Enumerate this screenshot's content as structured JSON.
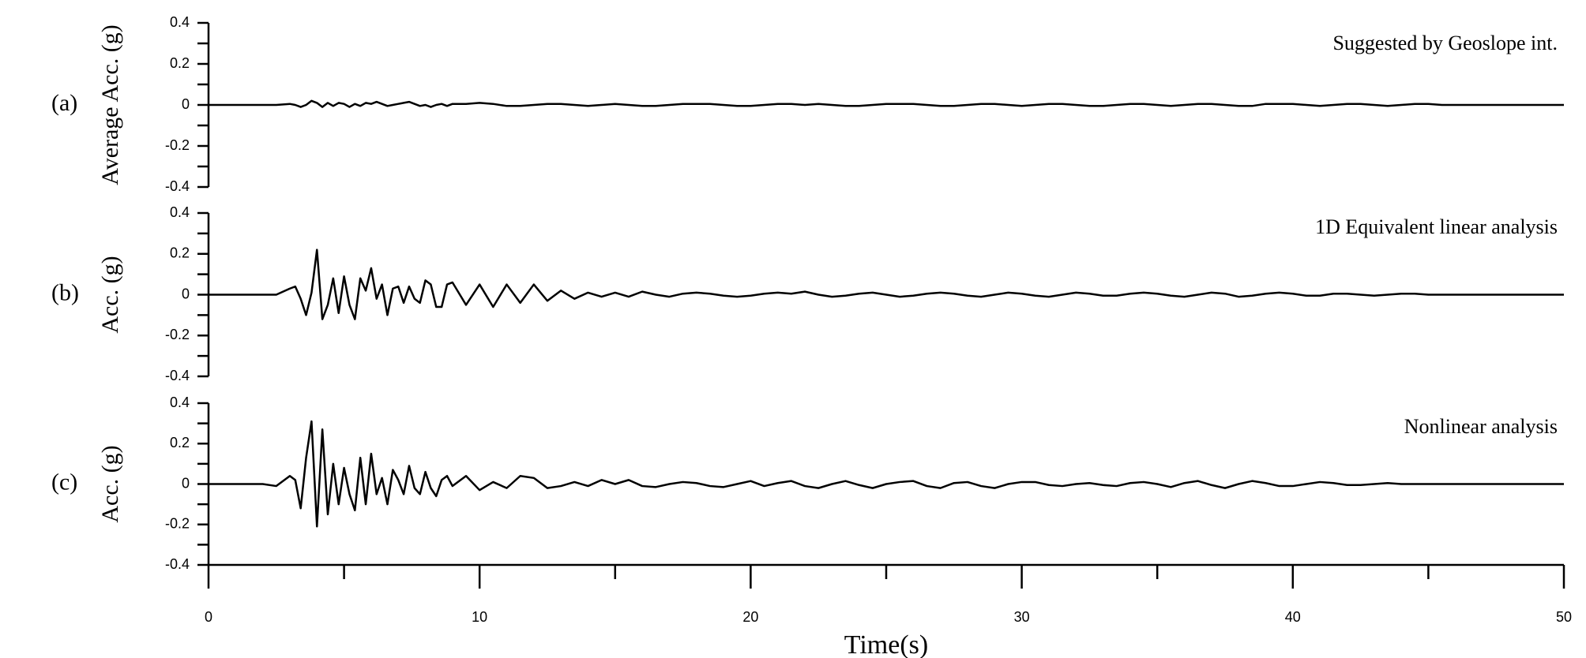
{
  "chart_data": {
    "type": "line",
    "color": "#000000",
    "xlabel": "Time(s)",
    "xlim": [
      0,
      50
    ],
    "xticks": [
      0,
      10,
      20,
      30,
      40,
      50
    ],
    "x": [
      0,
      1,
      2,
      2.5,
      3,
      3.2,
      3.4,
      3.6,
      3.8,
      4,
      4.2,
      4.4,
      4.6,
      4.8,
      5,
      5.2,
      5.4,
      5.6,
      5.8,
      6,
      6.2,
      6.4,
      6.6,
      6.8,
      7,
      7.2,
      7.4,
      7.6,
      7.8,
      8,
      8.2,
      8.4,
      8.6,
      8.8,
      9,
      9.5,
      10,
      10.5,
      11,
      11.5,
      12,
      12.5,
      13,
      13.5,
      14,
      14.5,
      15,
      15.5,
      16,
      16.5,
      17,
      17.5,
      18,
      18.5,
      19,
      19.5,
      20,
      20.5,
      21,
      21.5,
      22,
      22.5,
      23,
      23.5,
      24,
      24.5,
      25,
      25.5,
      26,
      26.5,
      27,
      27.5,
      28,
      28.5,
      29,
      29.5,
      30,
      30.5,
      31,
      31.5,
      32,
      32.5,
      33,
      33.5,
      34,
      34.5,
      35,
      35.5,
      36,
      36.5,
      37,
      37.5,
      38,
      38.5,
      39,
      39.5,
      40,
      40.5,
      41,
      41.5,
      42,
      42.5,
      43,
      43.5,
      44,
      44.5,
      45,
      45.5,
      46,
      46.5,
      47,
      47.5,
      48,
      48.5,
      49,
      49.5,
      50
    ],
    "panels": [
      {
        "label": "(a)",
        "ylabel": "Average Acc. (g)",
        "annotation": "Suggested by Geoslope int.",
        "ylim": [
          -0.4,
          0.4
        ],
        "yticks": [
          -0.4,
          -0.2,
          0,
          0.2,
          0.4
        ],
        "values": [
          0,
          0,
          0,
          0,
          0.005,
          0,
          -0.01,
          0,
          0.02,
          0.01,
          -0.01,
          0.01,
          -0.005,
          0.01,
          0.005,
          -0.01,
          0.005,
          -0.005,
          0.01,
          0.005,
          0.015,
          0.005,
          -0.005,
          0,
          0.005,
          0.01,
          0.015,
          0.005,
          -0.005,
          0,
          -0.01,
          0,
          0.005,
          -0.005,
          0.005,
          0.005,
          0.01,
          0.005,
          -0.005,
          -0.005,
          0,
          0.005,
          0.005,
          0,
          -0.005,
          0,
          0.005,
          0,
          -0.005,
          -0.005,
          0,
          0.005,
          0.005,
          0.005,
          0,
          -0.005,
          -0.005,
          0,
          0.005,
          0.005,
          0,
          0.005,
          0,
          -0.005,
          -0.005,
          0,
          0.005,
          0.005,
          0.005,
          0,
          -0.005,
          -0.005,
          0,
          0.005,
          0.005,
          0,
          -0.005,
          0,
          0.005,
          0.005,
          0,
          -0.005,
          -0.005,
          0,
          0.005,
          0.005,
          0,
          -0.005,
          0,
          0.005,
          0.005,
          0,
          -0.005,
          -0.005,
          0.005,
          0.005,
          0.005,
          0,
          -0.005,
          0,
          0.005,
          0.005,
          0,
          -0.005,
          0,
          0.005,
          0.005,
          0,
          0,
          0,
          0,
          0,
          0,
          0,
          0,
          0,
          0
        ]
      },
      {
        "label": "(b)",
        "ylabel": "Acc. (g)",
        "annotation": "1D Equivalent linear analysis",
        "ylim": [
          -0.4,
          0.4
        ],
        "yticks": [
          -0.4,
          -0.2,
          0,
          0.2,
          0.4
        ],
        "values": [
          0,
          0,
          0,
          0,
          0.03,
          0.04,
          -0.02,
          -0.1,
          0.01,
          0.22,
          -0.12,
          -0.05,
          0.08,
          -0.09,
          0.09,
          -0.05,
          -0.12,
          0.08,
          0.02,
          0.13,
          -0.02,
          0.05,
          -0.1,
          0.03,
          0.04,
          -0.04,
          0.04,
          -0.02,
          -0.04,
          0.07,
          0.05,
          -0.06,
          -0.06,
          0.05,
          0.06,
          -0.05,
          0.05,
          -0.06,
          0.05,
          -0.04,
          0.05,
          -0.03,
          0.02,
          -0.02,
          0.01,
          -0.01,
          0.01,
          -0.01,
          0.015,
          0,
          -0.01,
          0.005,
          0.01,
          0.005,
          -0.005,
          -0.01,
          -0.005,
          0.005,
          0.01,
          0.005,
          0.015,
          0,
          -0.01,
          -0.005,
          0.005,
          0.01,
          0,
          -0.01,
          -0.005,
          0.005,
          0.01,
          0.005,
          -0.005,
          -0.01,
          0,
          0.01,
          0.005,
          -0.005,
          -0.01,
          0,
          0.01,
          0.005,
          -0.005,
          -0.005,
          0.005,
          0.01,
          0.005,
          -0.005,
          -0.01,
          0,
          0.01,
          0.005,
          -0.01,
          -0.005,
          0.005,
          0.01,
          0.005,
          -0.005,
          -0.005,
          0.005,
          0.005,
          0,
          -0.005,
          0,
          0.005,
          0.005,
          0,
          0,
          0,
          0,
          0,
          0,
          0,
          0,
          0,
          0,
          0
        ]
      },
      {
        "label": "(c)",
        "ylabel": "Acc. (g)",
        "annotation": "Nonlinear analysis",
        "ylim": [
          -0.4,
          0.4
        ],
        "yticks": [
          -0.4,
          -0.2,
          0,
          0.2,
          0.4
        ],
        "values": [
          0,
          0,
          0,
          -0.01,
          0.04,
          0.02,
          -0.12,
          0.13,
          0.31,
          -0.21,
          0.27,
          -0.15,
          0.1,
          -0.1,
          0.08,
          -0.05,
          -0.13,
          0.13,
          -0.1,
          0.15,
          -0.05,
          0.03,
          -0.1,
          0.07,
          0.02,
          -0.05,
          0.09,
          -0.02,
          -0.05,
          0.06,
          -0.02,
          -0.06,
          0.02,
          0.04,
          -0.01,
          0.04,
          -0.03,
          0.01,
          -0.02,
          0.04,
          0.03,
          -0.02,
          -0.01,
          0.01,
          -0.01,
          0.02,
          0,
          0.02,
          -0.01,
          -0.015,
          0,
          0.01,
          0.005,
          -0.01,
          -0.015,
          0,
          0.015,
          -0.01,
          0.005,
          0.015,
          -0.01,
          -0.02,
          0,
          0.015,
          -0.005,
          -0.02,
          0,
          0.01,
          0.015,
          -0.01,
          -0.02,
          0.005,
          0.01,
          -0.01,
          -0.02,
          0,
          0.01,
          0.01,
          -0.005,
          -0.01,
          0,
          0.005,
          -0.005,
          -0.01,
          0.005,
          0.01,
          0,
          -0.015,
          0.005,
          0.015,
          -0.005,
          -0.02,
          0,
          0.015,
          0.005,
          -0.01,
          -0.01,
          0,
          0.01,
          0.005,
          -0.005,
          -0.005,
          0,
          0.005,
          0,
          0,
          0,
          0,
          0,
          0,
          0,
          0,
          0,
          0,
          0,
          0,
          0
        ]
      }
    ]
  }
}
